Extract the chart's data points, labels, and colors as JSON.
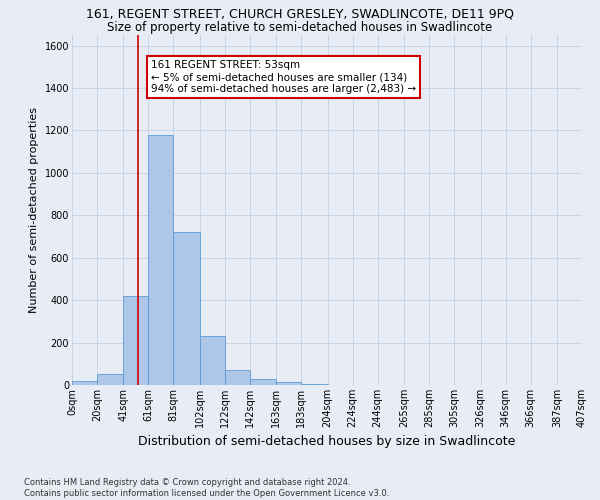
{
  "title_line1": "161, REGENT STREET, CHURCH GRESLEY, SWADLINCOTE, DE11 9PQ",
  "title_line2": "Size of property relative to semi-detached houses in Swadlincote",
  "xlabel": "Distribution of semi-detached houses by size in Swadlincote",
  "ylabel": "Number of semi-detached properties",
  "footnote": "Contains HM Land Registry data © Crown copyright and database right 2024.\nContains public sector information licensed under the Open Government Licence v3.0.",
  "annotation_title": "161 REGENT STREET: 53sqm",
  "annotation_line2": "← 5% of semi-detached houses are smaller (134)",
  "annotation_line3": "94% of semi-detached houses are larger (2,483) →",
  "property_size": 53,
  "bar_edges": [
    0,
    20,
    41,
    61,
    81,
    102,
    122,
    142,
    163,
    183,
    204,
    224,
    244,
    265,
    285,
    305,
    326,
    346,
    366,
    387,
    407
  ],
  "bar_heights": [
    20,
    50,
    420,
    1180,
    720,
    230,
    70,
    30,
    15,
    5,
    2,
    1,
    0,
    0,
    0,
    0,
    0,
    0,
    0,
    0
  ],
  "bar_color": "#aec6e8",
  "bar_edge_color": "#5b9bd5",
  "vline_color": "#cc0000",
  "vline_x": 53,
  "ylim": [
    0,
    1650
  ],
  "yticks": [
    0,
    200,
    400,
    600,
    800,
    1000,
    1200,
    1400,
    1600
  ],
  "grid_color": "#c8d4e8",
  "background_color": "#e8edf5",
  "annotation_box_color": "#ffffff",
  "annotation_box_edge": "#cc0000",
  "title1_fontsize": 9,
  "title2_fontsize": 8.5,
  "xlabel_fontsize": 9,
  "ylabel_fontsize": 8,
  "tick_fontsize": 7,
  "footnote_fontsize": 6,
  "tick_labels": [
    "0sqm",
    "20sqm",
    "41sqm",
    "61sqm",
    "81sqm",
    "102sqm",
    "122sqm",
    "142sqm",
    "163sqm",
    "183sqm",
    "204sqm",
    "224sqm",
    "244sqm",
    "265sqm",
    "285sqm",
    "305sqm",
    "326sqm",
    "346sqm",
    "366sqm",
    "387sqm",
    "407sqm"
  ]
}
